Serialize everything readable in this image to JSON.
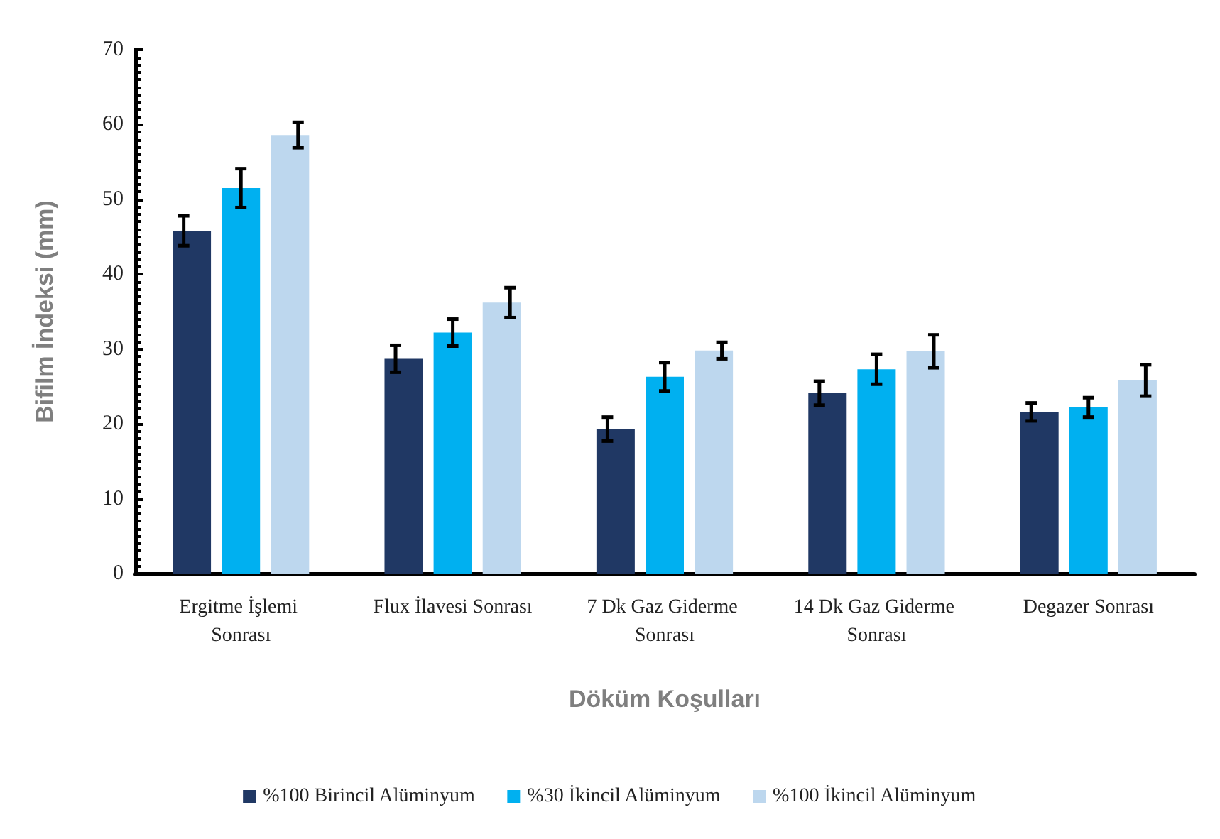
{
  "chart_data": {
    "type": "bar",
    "xlabel": "Döküm Koşulları",
    "ylabel": "Bifilm İndeksi (mm)",
    "categories": [
      "Ergitme İşlemi Sonrası",
      "Flux İlavesi Sonrası",
      "7 Dk Gaz Giderme Sonrası",
      "14 Dk Gaz Giderme Sonrası",
      "Degazer Sonrası"
    ],
    "series": [
      {
        "name": "%100 Birincil Alüminyum",
        "color": "#203864",
        "values": [
          45.8,
          28.7,
          19.3,
          24.1,
          21.6
        ],
        "errors": [
          2.0,
          1.8,
          1.6,
          1.6,
          1.2
        ]
      },
      {
        "name": "%30 İkincil Alüminyum",
        "color": "#00b0f0",
        "values": [
          51.5,
          32.2,
          26.3,
          27.3,
          22.2
        ],
        "errors": [
          2.6,
          1.8,
          1.9,
          2.0,
          1.3
        ]
      },
      {
        "name": "%100 İkincil Alüminyum",
        "color": "#bdd7ee",
        "values": [
          58.6,
          36.2,
          29.8,
          29.7,
          25.8
        ],
        "errors": [
          1.7,
          2.0,
          1.1,
          2.2,
          2.1
        ]
      }
    ],
    "ylim": [
      0,
      70
    ],
    "yticks": [
      0,
      10,
      20,
      30,
      40,
      50,
      60,
      70
    ],
    "grid": false,
    "legend": "bottom"
  }
}
